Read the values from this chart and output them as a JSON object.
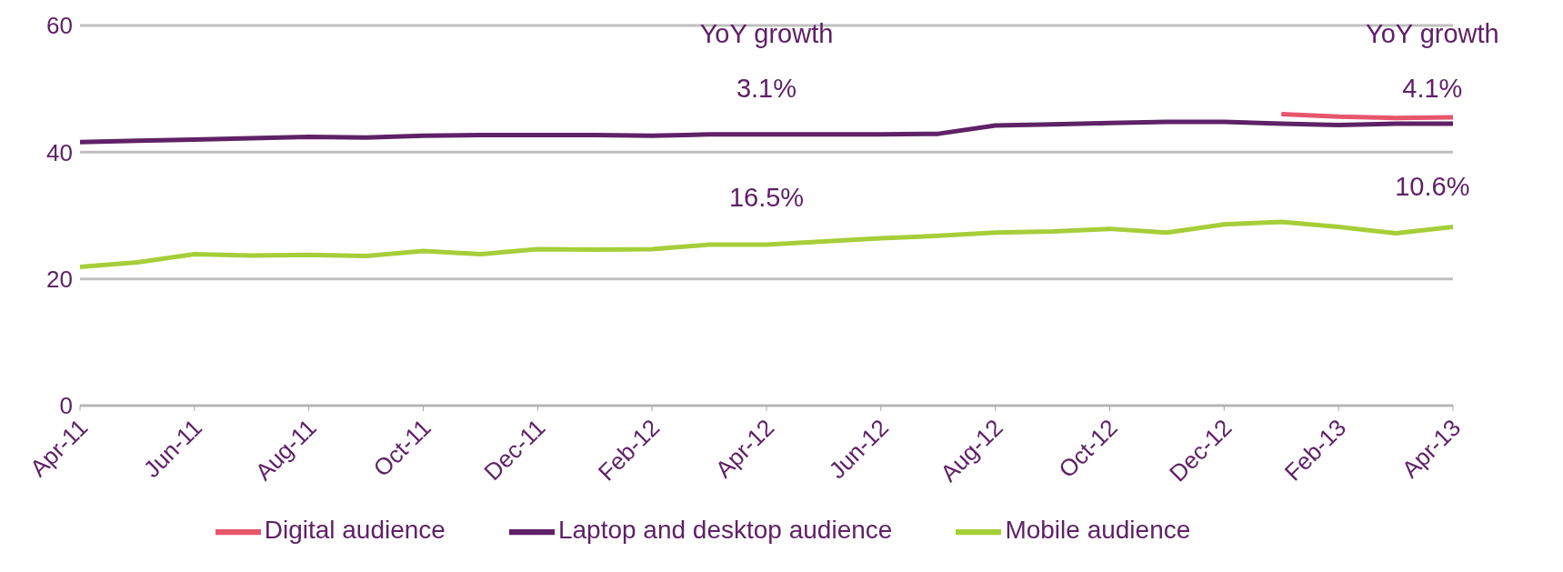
{
  "chart_data": {
    "type": "line",
    "categories": [
      "Apr-11",
      null,
      "Jun-11",
      null,
      "Aug-11",
      null,
      "Oct-11",
      null,
      "Dec-11",
      null,
      "Feb-12",
      null,
      "Apr-12",
      null,
      "Jun-12",
      null,
      "Aug-12",
      null,
      "Oct-12",
      null,
      "Dec-12",
      null,
      "Feb-13",
      null,
      "Apr-13"
    ],
    "series": [
      {
        "name": "Laptop and desktop audience",
        "color": "#5f2167",
        "values": [
          41.6,
          41.8,
          42.0,
          42.2,
          42.4,
          42.3,
          42.6,
          42.7,
          42.7,
          42.7,
          42.6,
          42.8,
          42.8,
          42.8,
          42.8,
          42.9,
          44.2,
          44.4,
          44.6,
          44.8,
          44.8,
          44.5,
          44.3,
          44.5,
          44.5
        ]
      },
      {
        "name": "Mobile audience",
        "color": "#a6ce39",
        "values": [
          21.9,
          22.6,
          23.9,
          23.7,
          23.8,
          23.6,
          24.4,
          23.9,
          24.7,
          24.6,
          24.7,
          25.4,
          25.4,
          25.9,
          26.4,
          26.8,
          27.3,
          27.5,
          27.9,
          27.3,
          28.6,
          29.0,
          28.2,
          27.2,
          28.2
        ]
      },
      {
        "name": "Digital audience",
        "color": "#e8566c",
        "values": [
          null,
          null,
          null,
          null,
          null,
          null,
          null,
          null,
          null,
          null,
          null,
          null,
          null,
          null,
          null,
          null,
          null,
          null,
          null,
          null,
          null,
          46.0,
          45.6,
          45.4,
          45.5
        ]
      }
    ],
    "ylim": [
      0,
      60
    ],
    "yticks": [
      0,
      20,
      40,
      60
    ],
    "grid": "y",
    "legend": "bottom",
    "marker": "none",
    "line_style": "solid",
    "annotations": [
      "YoY growth",
      "3.1%",
      "16.5%",
      "YoY growth",
      "4.1%",
      "10.6%"
    ]
  }
}
